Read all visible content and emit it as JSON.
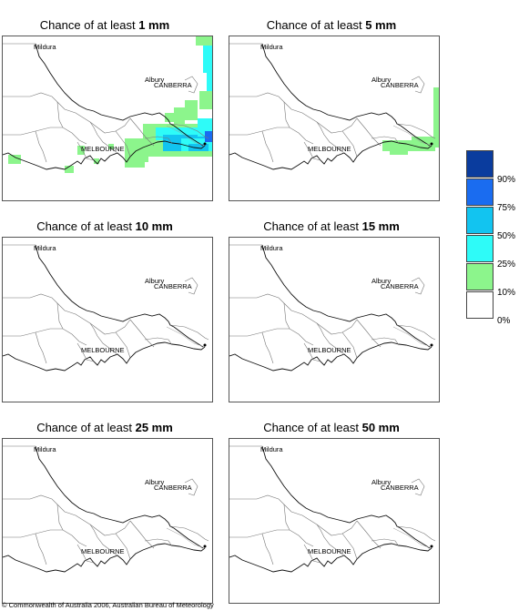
{
  "panels": [
    {
      "title_prefix": "Chance of at least",
      "amount": "1 mm"
    },
    {
      "title_prefix": "Chance of at least",
      "amount": "5 mm"
    },
    {
      "title_prefix": "Chance of at least",
      "amount": "10 mm"
    },
    {
      "title_prefix": "Chance of at least",
      "amount": "15 mm"
    },
    {
      "title_prefix": "Chance of at least",
      "amount": "25 mm"
    },
    {
      "title_prefix": "Chance of at least",
      "amount": "50 mm"
    }
  ],
  "cities": {
    "mildura": "Mildura",
    "canberra": "CANBERRA",
    "albury": "Albury",
    "melbourne": "MELBOURNE"
  },
  "legend": {
    "labels": [
      "90%",
      "75%",
      "50%",
      "25%",
      "10%",
      "0%"
    ],
    "colors": [
      "#0a3c9e",
      "#1a6cf0",
      "#12c4f0",
      "#2efbf8",
      "#8cf58c",
      "#ffffff"
    ]
  },
  "copyright": "© Commonwealth of Australia 2006, Australian Bureau of Meteorology"
}
